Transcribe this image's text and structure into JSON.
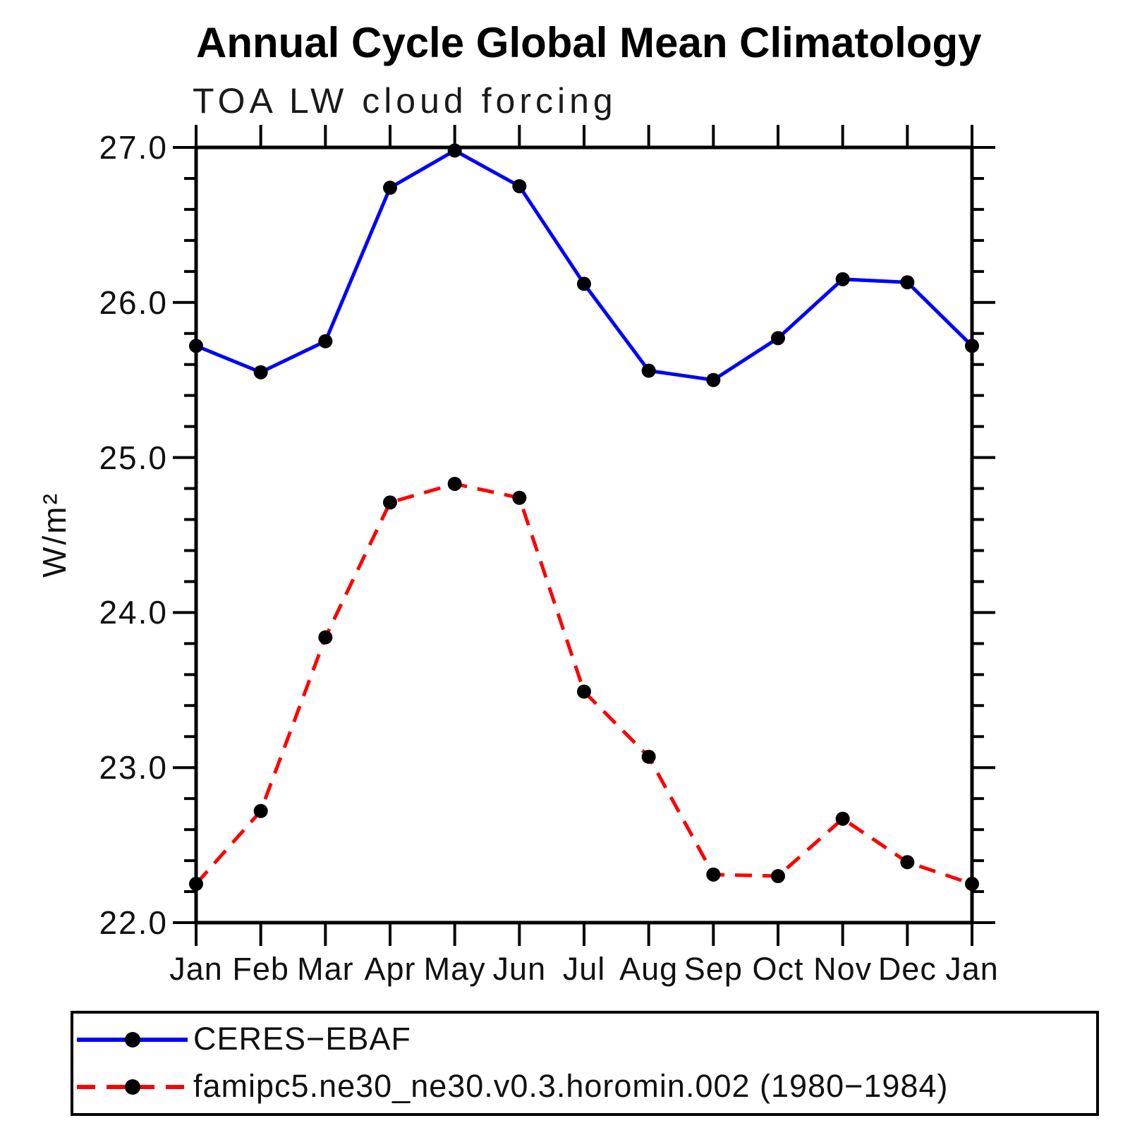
{
  "title": "Annual Cycle Global Mean Climatology",
  "subtitle": "TOA LW cloud forcing",
  "ylabel": "W/m²",
  "chart_data": {
    "type": "line",
    "categories": [
      "Jan",
      "Feb",
      "Mar",
      "Apr",
      "May",
      "Jun",
      "Jul",
      "Aug",
      "Sep",
      "Oct",
      "Nov",
      "Dec",
      "Jan"
    ],
    "xlabel": "",
    "ylabel": "W/m²",
    "ylim": [
      22.0,
      27.0
    ],
    "ytick_major": [
      27.0,
      26.0,
      25.0,
      24.0,
      23.0,
      22.0
    ],
    "ytick_labels": [
      "27.0",
      "26.0",
      "25.0",
      "24.0",
      "23.0",
      "22.0"
    ],
    "ytick_minor_step": 0.2,
    "grid": false,
    "legend_position": "bottom",
    "axis_color": "#000000",
    "marker_color": "#000000",
    "series": [
      {
        "name": "CERES−EBAF",
        "color": "#0000ff",
        "style": "solid",
        "marker": "circle",
        "values": [
          25.72,
          25.55,
          25.75,
          26.74,
          26.98,
          26.75,
          26.12,
          25.56,
          25.5,
          25.77,
          26.15,
          26.13,
          25.72
        ]
      },
      {
        "name": "famipc5.ne30_ne30.v0.3.horomin.002 (1980−1984)",
        "color": "#ff0000",
        "style": "dashed",
        "marker": "circle",
        "values": [
          22.25,
          22.72,
          23.84,
          24.71,
          24.83,
          24.74,
          23.49,
          23.07,
          22.31,
          22.3,
          22.67,
          22.39,
          22.25
        ]
      }
    ]
  }
}
